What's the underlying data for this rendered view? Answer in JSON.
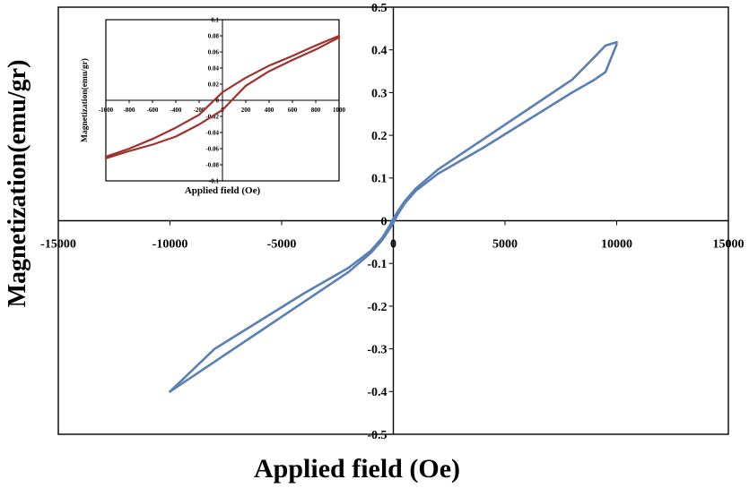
{
  "chart_data": [
    {
      "type": "line",
      "role": "main",
      "xlabel": "Applied field (Oe)",
      "ylabel": "Magnetization(emu/gr)",
      "xlim": [
        -15000,
        15000
      ],
      "ylim": [
        -0.5,
        0.5
      ],
      "x_ticks": [
        -15000,
        -10000,
        -5000,
        0,
        5000,
        10000,
        15000
      ],
      "y_ticks": [
        -0.5,
        -0.4,
        -0.3,
        -0.2,
        -0.1,
        0,
        0.1,
        0.2,
        0.3,
        0.4,
        0.5
      ],
      "x_tick_labels": [
        "-15000",
        "-10000",
        "-5000",
        "0",
        "5000",
        "10000",
        "15000"
      ],
      "y_tick_labels": [
        "-0.5",
        "-0.4",
        "-0.3",
        "-0.2",
        "-0.1",
        "0",
        "0.1",
        "0.2",
        "0.3",
        "0.4",
        "0.5"
      ],
      "grid": false,
      "series_color": "#5b7fb5",
      "series": [
        {
          "branch": "ascending",
          "x": [
            -10000,
            -8000,
            -6000,
            -4000,
            -2000,
            -1000,
            -500,
            -200,
            0,
            200,
            500,
            1000,
            2000,
            4000,
            6000,
            8000,
            9000,
            9500,
            10000
          ],
          "y": [
            -0.4,
            -0.33,
            -0.26,
            -0.19,
            -0.12,
            -0.075,
            -0.045,
            -0.022,
            -0.005,
            0.015,
            0.04,
            0.07,
            0.11,
            0.17,
            0.235,
            0.3,
            0.33,
            0.348,
            0.413
          ]
        },
        {
          "branch": "descending",
          "x": [
            10000,
            9500,
            9000,
            8000,
            6000,
            4000,
            2000,
            1000,
            500,
            200,
            0,
            -200,
            -500,
            -1000,
            -2000,
            -4000,
            -6000,
            -8000,
            -10000
          ],
          "y": [
            0.418,
            0.41,
            0.383,
            0.33,
            0.26,
            0.19,
            0.12,
            0.075,
            0.045,
            0.022,
            0.005,
            -0.015,
            -0.04,
            -0.07,
            -0.11,
            -0.17,
            -0.235,
            -0.3,
            -0.4
          ]
        }
      ]
    },
    {
      "type": "line",
      "role": "inset",
      "xlabel": "Applied field (Oe)",
      "ylabel": "Magnetization(emu/gr)",
      "xlim": [
        -1000,
        1000
      ],
      "ylim": [
        -0.1,
        0.1
      ],
      "x_ticks": [
        -1000,
        -800,
        -600,
        -400,
        -200,
        0,
        200,
        400,
        600,
        800,
        1000
      ],
      "y_ticks": [
        -0.1,
        -0.08,
        -0.06,
        -0.04,
        -0.02,
        0,
        0.02,
        0.04,
        0.06,
        0.08,
        0.1
      ],
      "x_tick_labels": [
        "-1000",
        "-800",
        "-600",
        "-400",
        "-200",
        "0",
        "200",
        "400",
        "600",
        "800",
        "1000"
      ],
      "y_tick_labels": [
        "-0.1",
        "-0.08",
        "-0.06",
        "-0.04",
        "-0.02",
        "0",
        "0.02",
        "0.04",
        "0.06",
        "0.08",
        "0.1"
      ],
      "grid": false,
      "series_color": "#a0302c",
      "series": [
        {
          "branch": "upper",
          "x": [
            -1000,
            -800,
            -600,
            -400,
            -200,
            0,
            200,
            400,
            600,
            800,
            1000
          ],
          "y": [
            -0.07,
            -0.06,
            -0.048,
            -0.034,
            -0.018,
            0.01,
            0.028,
            0.043,
            0.055,
            0.068,
            0.08
          ]
        },
        {
          "branch": "lower",
          "x": [
            1000,
            800,
            600,
            400,
            200,
            0,
            -200,
            -400,
            -600,
            -800,
            -1000
          ],
          "y": [
            0.078,
            0.063,
            0.05,
            0.036,
            0.018,
            -0.012,
            -0.03,
            -0.045,
            -0.055,
            -0.063,
            -0.072
          ]
        }
      ]
    }
  ]
}
